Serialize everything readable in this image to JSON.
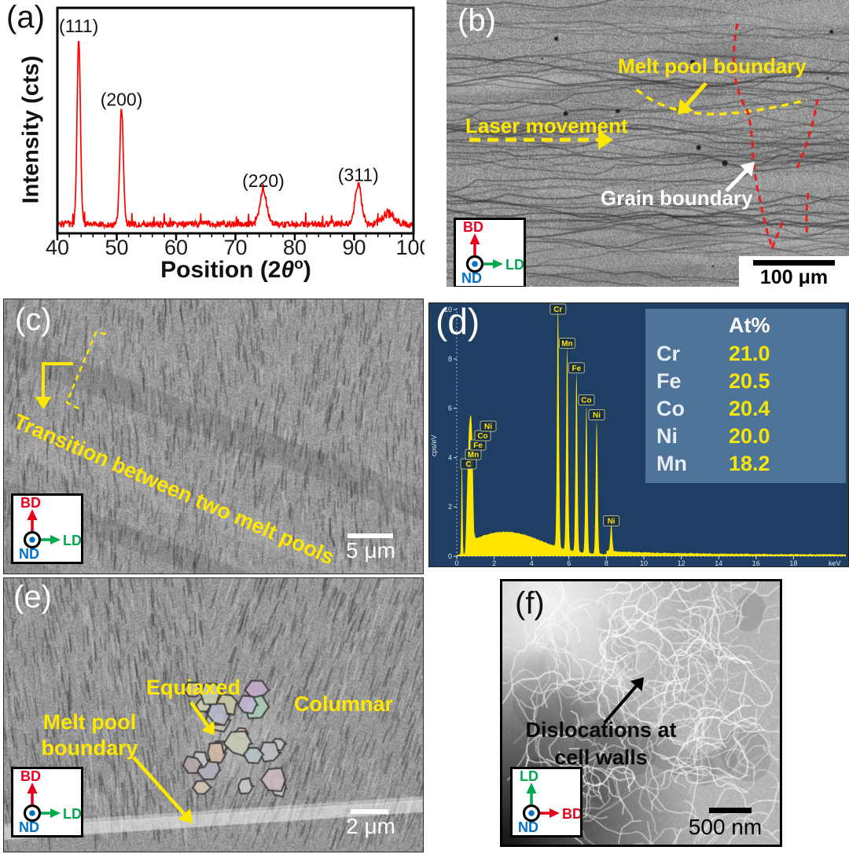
{
  "colors": {
    "annotation_yellow": "#ffe800",
    "annotation_white": "#ffffff",
    "annotation_red": "#e8201c",
    "xrd_line": "#ff0000",
    "bd": "#e8001d",
    "ld": "#00a94f",
    "nd": "#0070c8",
    "eds_background": "#1e3f63",
    "eds_spectrum": "#ffe600",
    "eds_table_background": "#4f7499"
  },
  "axes_legend": {
    "bd": "BD",
    "ld": "LD",
    "nd": "ND"
  },
  "panels": {
    "a": {
      "label": "(a)",
      "ylabel": "Intensity (cts)",
      "xlabel_parts": {
        "pre": "Position (2",
        "theta": "θ",
        "sup": "o",
        "post": ")"
      }
    },
    "b": {
      "label": "(b)",
      "annotations": {
        "melt_pool_boundary": "Melt pool boundary",
        "laser_movement": "Laser movement",
        "grain_boundary": "Grain boundary"
      },
      "scale_bar": "100 μm"
    },
    "c": {
      "label": "(c)",
      "annotations": {
        "transition": "Transition between two melt pools"
      },
      "scale_bar": "5 μm"
    },
    "d": {
      "label": "(d)"
    },
    "e": {
      "label": "(e)",
      "annotations": {
        "equiaxed": "Equiaxed",
        "columnar": "Columnar",
        "melt_pool_line1": "Melt pool",
        "melt_pool_line2": "boundary"
      },
      "scale_bar": "2 μm"
    },
    "f": {
      "label": "(f)",
      "annotations": {
        "line1": "Dislocations at",
        "line2": "cell walls"
      },
      "scale_bar": "500 nm"
    }
  },
  "chart_data": [
    {
      "type": "line",
      "panel": "a",
      "description": "XRD pattern with FCC peaks",
      "xlabel": "Position (2θ°)",
      "ylabel": "Intensity (cts)",
      "xlim": [
        40,
        100
      ],
      "x_ticks": [
        40,
        50,
        60,
        70,
        80,
        90,
        100
      ],
      "x_minor_tick_step": 2,
      "line_color": "#ff0000",
      "peaks": [
        {
          "label": "(111)",
          "two_theta": 43.6,
          "rel_intensity": 1.0
        },
        {
          "label": "(200)",
          "two_theta": 50.8,
          "rel_intensity": 0.61
        },
        {
          "label": "(220)",
          "two_theta": 74.7,
          "rel_intensity": 0.18
        },
        {
          "label": "(311)",
          "two_theta": 90.7,
          "rel_intensity": 0.21
        }
      ],
      "noise_bumps": [
        {
          "two_theta": 95.8,
          "rel_intensity": 0.08
        }
      ],
      "noise_floor_rel": 0.05
    },
    {
      "type": "area",
      "panel": "d",
      "description": "EDS spectrum",
      "xlabel": "keV",
      "ylabel": "cps/eV",
      "xlim": [
        0,
        20.5
      ],
      "ylim": [
        0,
        10
      ],
      "x_ticks": [
        0,
        2,
        4,
        6,
        8,
        10,
        12,
        14,
        16,
        18
      ],
      "y_ticks": [
        0,
        2,
        4,
        6,
        8,
        10
      ],
      "fill_color": "#ffe600",
      "peaks": [
        {
          "label": "Cr",
          "keV": 5.41,
          "cps_per_eV": 10.0
        },
        {
          "label": "Mn",
          "keV": 5.9,
          "cps_per_eV": 8.3
        },
        {
          "label": "Fe",
          "keV": 6.4,
          "cps_per_eV": 7.3
        },
        {
          "label": "Co",
          "keV": 6.93,
          "cps_per_eV": 6.0
        },
        {
          "label": "Ni",
          "keV": 7.48,
          "cps_per_eV": 5.4
        },
        {
          "label": "Ni",
          "keV": 8.26,
          "cps_per_eV": 1.1
        }
      ],
      "low_energy_peak_labels": [
        "C",
        "Mn",
        "Fe",
        "Co",
        "Ni"
      ],
      "composition_table": {
        "header": "At%",
        "rows": [
          {
            "element": "Cr",
            "at_pct": "21.0"
          },
          {
            "element": "Fe",
            "at_pct": "20.5"
          },
          {
            "element": "Co",
            "at_pct": "20.4"
          },
          {
            "element": "Ni",
            "at_pct": "20.0"
          },
          {
            "element": "Mn",
            "at_pct": "18.2"
          }
        ]
      }
    }
  ]
}
